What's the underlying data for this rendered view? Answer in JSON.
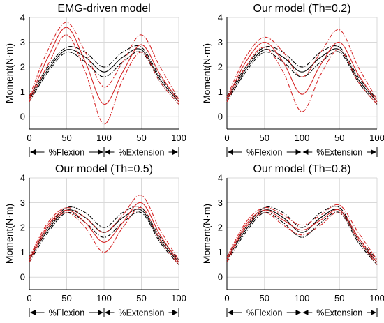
{
  "colors": {
    "emg": "#d62728",
    "measured": "#000000",
    "axis": "#000000",
    "grid": "#d9d9d9"
  },
  "chart_data": [
    {
      "type": "line",
      "title": "EMG-driven model",
      "ylabel": "Moment(N·m)",
      "ylim": [
        -0.5,
        4
      ],
      "yticks": [
        0,
        1,
        2,
        3,
        4
      ],
      "xlim": [
        0,
        200
      ],
      "xtick_labels": [
        "0",
        "50",
        "100",
        "50",
        "100"
      ],
      "phase_labels": [
        "%Flexion",
        "%Extension"
      ],
      "grid": true,
      "series": [
        {
          "color": "black",
          "dash": "solid",
          "x": [
            0,
            25,
            50,
            75,
            100,
            125,
            150,
            175,
            200
          ],
          "y": [
            0.7,
            1.9,
            2.7,
            2.4,
            1.8,
            2.4,
            2.7,
            1.5,
            0.6
          ]
        },
        {
          "color": "black",
          "dash": "dashdot",
          "x": [
            0,
            25,
            50,
            75,
            100,
            125,
            150,
            175,
            200
          ],
          "y": [
            0.6,
            1.8,
            2.6,
            2.2,
            1.6,
            2.2,
            2.6,
            1.4,
            0.5
          ]
        },
        {
          "color": "black",
          "dash": "dashdot",
          "x": [
            0,
            25,
            50,
            75,
            100,
            125,
            150,
            175,
            200
          ],
          "y": [
            0.8,
            2.0,
            2.8,
            2.6,
            2.0,
            2.6,
            2.8,
            1.6,
            0.7
          ]
        },
        {
          "color": "red",
          "dash": "solid",
          "x": [
            0,
            25,
            50,
            75,
            100,
            125,
            150,
            175,
            200
          ],
          "y": [
            0.7,
            2.4,
            3.6,
            2.2,
            0.5,
            1.8,
            2.9,
            1.7,
            0.6
          ]
        },
        {
          "color": "red",
          "dash": "dashdot",
          "x": [
            0,
            25,
            50,
            75,
            100,
            125,
            150,
            175,
            200
          ],
          "y": [
            0.6,
            2.1,
            3.3,
            1.8,
            -0.3,
            1.5,
            2.6,
            1.4,
            0.5
          ]
        },
        {
          "color": "red",
          "dash": "dashdot",
          "x": [
            0,
            25,
            50,
            75,
            100,
            125,
            150,
            175,
            200
          ],
          "y": [
            0.8,
            2.7,
            3.8,
            2.6,
            1.2,
            2.2,
            3.3,
            2.0,
            0.7
          ]
        }
      ]
    },
    {
      "type": "line",
      "title": "Our model (Th=0.2)",
      "ylabel": "Moment(N·m)",
      "ylim": [
        -0.5,
        4
      ],
      "yticks": [
        0,
        1,
        2,
        3,
        4
      ],
      "xlim": [
        0,
        200
      ],
      "xtick_labels": [
        "0",
        "50",
        "100",
        "50",
        "100"
      ],
      "phase_labels": [
        "%Flexion",
        "%Extension"
      ],
      "grid": true,
      "series": [
        {
          "color": "black",
          "dash": "solid",
          "x": [
            0,
            25,
            50,
            75,
            100,
            125,
            150,
            175,
            200
          ],
          "y": [
            0.7,
            1.9,
            2.7,
            2.4,
            1.8,
            2.4,
            2.7,
            1.5,
            0.6
          ]
        },
        {
          "color": "black",
          "dash": "dashdot",
          "x": [
            0,
            25,
            50,
            75,
            100,
            125,
            150,
            175,
            200
          ],
          "y": [
            0.6,
            1.8,
            2.6,
            2.2,
            1.6,
            2.2,
            2.6,
            1.4,
            0.5
          ]
        },
        {
          "color": "black",
          "dash": "dashdot",
          "x": [
            0,
            25,
            50,
            75,
            100,
            125,
            150,
            175,
            200
          ],
          "y": [
            0.8,
            2.0,
            2.8,
            2.6,
            2.0,
            2.6,
            2.8,
            1.6,
            0.7
          ]
        },
        {
          "color": "red",
          "dash": "solid",
          "x": [
            0,
            25,
            50,
            75,
            100,
            125,
            150,
            175,
            200
          ],
          "y": [
            0.7,
            2.2,
            3.0,
            2.2,
            0.9,
            2.1,
            3.0,
            1.7,
            0.6
          ]
        },
        {
          "color": "red",
          "dash": "dashdot",
          "x": [
            0,
            25,
            50,
            75,
            100,
            125,
            150,
            175,
            200
          ],
          "y": [
            0.6,
            2.0,
            2.8,
            1.8,
            0.2,
            1.7,
            2.7,
            1.4,
            0.5
          ]
        },
        {
          "color": "red",
          "dash": "dashdot",
          "x": [
            0,
            25,
            50,
            75,
            100,
            125,
            150,
            175,
            200
          ],
          "y": [
            0.8,
            2.4,
            3.2,
            2.6,
            1.6,
            2.6,
            3.5,
            2.0,
            0.7
          ]
        }
      ]
    },
    {
      "type": "line",
      "title": "Our model (Th=0.5)",
      "ylabel": "Moment(N·m)",
      "ylim": [
        -0.5,
        4
      ],
      "yticks": [
        0,
        1,
        2,
        3,
        4
      ],
      "xlim": [
        0,
        200
      ],
      "xtick_labels": [
        "0",
        "50",
        "100",
        "50",
        "100"
      ],
      "phase_labels": [
        "%Flexion",
        "%Extension"
      ],
      "grid": true,
      "series": [
        {
          "color": "black",
          "dash": "solid",
          "x": [
            0,
            25,
            50,
            75,
            100,
            125,
            150,
            175,
            200
          ],
          "y": [
            0.7,
            1.9,
            2.7,
            2.4,
            1.8,
            2.4,
            2.7,
            1.5,
            0.6
          ]
        },
        {
          "color": "black",
          "dash": "dashdot",
          "x": [
            0,
            25,
            50,
            75,
            100,
            125,
            150,
            175,
            200
          ],
          "y": [
            0.6,
            1.8,
            2.6,
            2.2,
            1.6,
            2.2,
            2.6,
            1.4,
            0.5
          ]
        },
        {
          "color": "black",
          "dash": "dashdot",
          "x": [
            0,
            25,
            50,
            75,
            100,
            125,
            150,
            175,
            200
          ],
          "y": [
            0.8,
            2.0,
            2.8,
            2.6,
            2.0,
            2.6,
            2.8,
            1.6,
            0.7
          ]
        },
        {
          "color": "red",
          "dash": "solid",
          "x": [
            0,
            25,
            50,
            75,
            100,
            125,
            150,
            175,
            200
          ],
          "y": [
            0.7,
            2.1,
            2.7,
            2.2,
            1.4,
            2.2,
            3.0,
            1.7,
            0.6
          ]
        },
        {
          "color": "red",
          "dash": "dashdot",
          "x": [
            0,
            25,
            50,
            75,
            100,
            125,
            150,
            175,
            200
          ],
          "y": [
            0.6,
            2.0,
            2.6,
            2.0,
            1.0,
            2.0,
            2.8,
            1.5,
            0.5
          ]
        },
        {
          "color": "red",
          "dash": "dashdot",
          "x": [
            0,
            25,
            50,
            75,
            100,
            125,
            150,
            175,
            200
          ],
          "y": [
            0.8,
            2.2,
            2.8,
            2.4,
            1.8,
            2.5,
            3.3,
            1.9,
            0.7
          ]
        }
      ]
    },
    {
      "type": "line",
      "title": "Our model (Th=0.8)",
      "ylabel": "Moment(N·m)",
      "ylim": [
        -0.5,
        4
      ],
      "yticks": [
        0,
        1,
        2,
        3,
        4
      ],
      "xlim": [
        0,
        200
      ],
      "xtick_labels": [
        "0",
        "50",
        "100",
        "50",
        "100"
      ],
      "phase_labels": [
        "%Flexion",
        "%Extension"
      ],
      "grid": true,
      "series": [
        {
          "color": "black",
          "dash": "solid",
          "x": [
            0,
            25,
            50,
            75,
            100,
            125,
            150,
            175,
            200
          ],
          "y": [
            0.7,
            1.9,
            2.7,
            2.4,
            1.8,
            2.4,
            2.7,
            1.5,
            0.6
          ]
        },
        {
          "color": "black",
          "dash": "dashdot",
          "x": [
            0,
            25,
            50,
            75,
            100,
            125,
            150,
            175,
            200
          ],
          "y": [
            0.6,
            1.8,
            2.6,
            2.2,
            1.6,
            2.2,
            2.6,
            1.4,
            0.5
          ]
        },
        {
          "color": "black",
          "dash": "dashdot",
          "x": [
            0,
            25,
            50,
            75,
            100,
            125,
            150,
            175,
            200
          ],
          "y": [
            0.8,
            2.0,
            2.8,
            2.6,
            2.0,
            2.6,
            2.8,
            1.6,
            0.7
          ]
        },
        {
          "color": "red",
          "dash": "solid",
          "x": [
            0,
            25,
            50,
            75,
            100,
            125,
            150,
            175,
            200
          ],
          "y": [
            0.7,
            2.1,
            2.7,
            2.3,
            1.9,
            2.3,
            2.7,
            1.6,
            0.6
          ]
        },
        {
          "color": "red",
          "dash": "dashdot",
          "x": [
            0,
            25,
            50,
            75,
            100,
            125,
            150,
            175,
            200
          ],
          "y": [
            0.6,
            2.0,
            2.6,
            2.1,
            1.7,
            2.1,
            2.6,
            1.5,
            0.5
          ]
        },
        {
          "color": "red",
          "dash": "dashdot",
          "x": [
            0,
            25,
            50,
            75,
            100,
            125,
            150,
            175,
            200
          ],
          "y": [
            0.8,
            2.2,
            2.8,
            2.5,
            2.1,
            2.5,
            2.9,
            1.8,
            0.7
          ]
        }
      ]
    }
  ]
}
